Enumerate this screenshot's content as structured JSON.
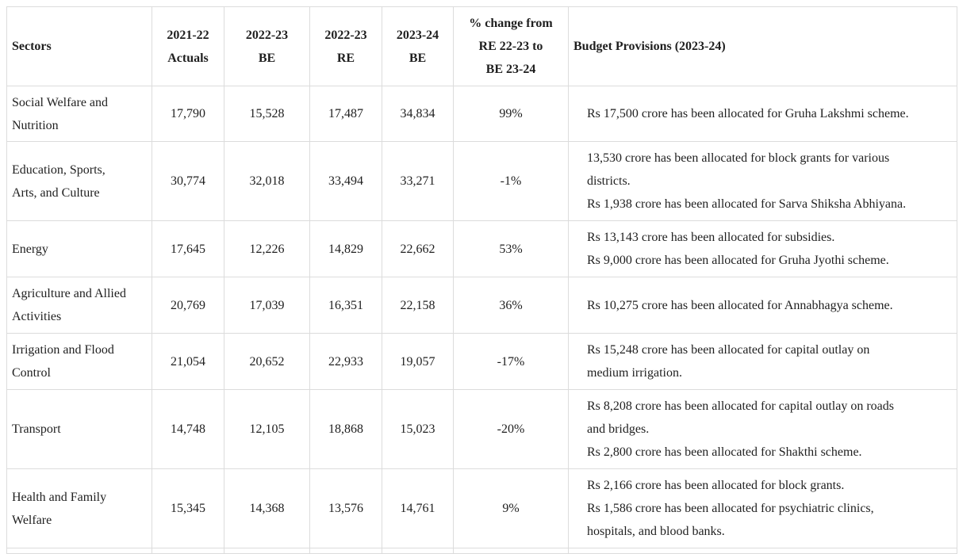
{
  "headers": [
    "Sectors",
    "2021-22 Actuals",
    "2022-23 BE",
    "2022-23 RE",
    "2023-24 BE",
    "% change from RE 22-23 to BE 23-24",
    "Budget Provisions (2023-24)"
  ],
  "header_lines": {
    "h0": [
      "Sectors"
    ],
    "h1": [
      "2021-22",
      "Actuals"
    ],
    "h2": [
      "2022-23",
      "BE"
    ],
    "h3": [
      "2022-23",
      "RE"
    ],
    "h4": [
      "2023-24",
      "BE"
    ],
    "h5": [
      "% change from",
      "RE 22-23 to",
      "BE 23-24"
    ],
    "h6": [
      "Budget Provisions (2023-24)"
    ]
  },
  "rows": [
    {
      "sector_lines": [
        "Social Welfare and",
        "Nutrition"
      ],
      "actuals_2122": "17,790",
      "be_2223": "15,528",
      "re_2223": "17,487",
      "be_2324": "34,834",
      "pct_change": "99%",
      "provisions": [
        "Rs 17,500 crore has been allocated for Gruha Lakshmi scheme."
      ]
    },
    {
      "sector_lines": [
        "Education, Sports,",
        "Arts, and Culture"
      ],
      "actuals_2122": "30,774",
      "be_2223": "32,018",
      "re_2223": "33,494",
      "be_2324": "33,271",
      "pct_change": "-1%",
      "provisions": [
        "13,530 crore has been allocated for block grants for various",
        "districts.",
        "Rs 1,938 crore has been allocated for Sarva Shiksha Abhiyana."
      ]
    },
    {
      "sector_lines": [
        "Energy"
      ],
      "actuals_2122": "17,645",
      "be_2223": "12,226",
      "re_2223": "14,829",
      "be_2324": "22,662",
      "pct_change": "53%",
      "provisions": [
        "Rs 13,143 crore has been allocated for subsidies.",
        "Rs 9,000 crore has been allocated for Gruha Jyothi scheme."
      ]
    },
    {
      "sector_lines": [
        "Agriculture and Allied",
        "Activities"
      ],
      "actuals_2122": "20,769",
      "be_2223": "17,039",
      "re_2223": "16,351",
      "be_2324": "22,158",
      "pct_change": "36%",
      "provisions": [
        "Rs 10,275 crore has been allocated for Annabhagya scheme."
      ]
    },
    {
      "sector_lines": [
        "Irrigation and Flood",
        "Control"
      ],
      "actuals_2122": "21,054",
      "be_2223": "20,652",
      "re_2223": "22,933",
      "be_2324": "19,057",
      "pct_change": "-17%",
      "provisions": [
        "Rs 15,248 crore has been allocated for capital outlay on",
        "medium irrigation."
      ]
    },
    {
      "sector_lines": [
        "Transport"
      ],
      "actuals_2122": "14,748",
      "be_2223": "12,105",
      "re_2223": "18,868",
      "be_2324": "15,023",
      "pct_change": "-20%",
      "provisions": [
        "Rs 8,208 crore has been allocated for capital outlay on roads",
        "and bridges.",
        "Rs 2,800 crore has been allocated for Shakthi scheme."
      ]
    },
    {
      "sector_lines": [
        "Health and Family",
        "Welfare"
      ],
      "actuals_2122": "15,345",
      "be_2223": "14,368",
      "re_2223": "13,576",
      "be_2324": "14,761",
      "pct_change": "9%",
      "provisions": [
        "Rs 2,166 crore has been allocated for block grants.",
        "Rs 1,586 crore has been allocated for psychiatric clinics,",
        "hospitals, and blood banks."
      ]
    }
  ]
}
